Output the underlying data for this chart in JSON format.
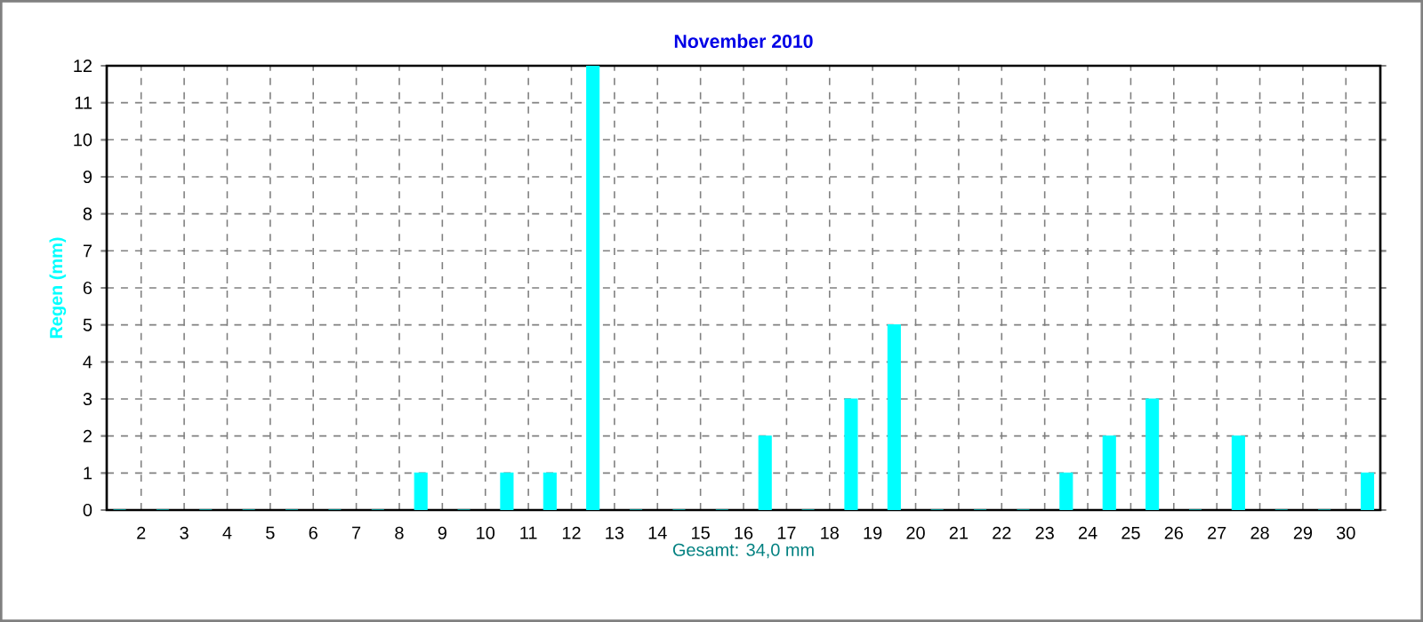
{
  "chart_data": {
    "type": "bar",
    "title": "November 2010",
    "xlabel": "Gesamt: 34,0 mm",
    "ylabel": "Regen  (mm)",
    "x": [
      1.5,
      2.5,
      3.5,
      4.5,
      5.5,
      6.5,
      7.5,
      8.5,
      9.5,
      10.5,
      11.5,
      12.5,
      13.5,
      14.5,
      15.5,
      16.5,
      17.5,
      18.5,
      19.5,
      20.5,
      21.5,
      22.5,
      23.5,
      24.5,
      25.5,
      26.5,
      27.5,
      28.5,
      29.5,
      30.5
    ],
    "values": [
      0,
      0,
      0,
      0,
      0,
      0,
      0,
      1,
      0,
      1,
      1,
      12,
      0,
      0,
      0,
      2,
      0,
      3,
      5,
      0,
      0,
      0,
      1,
      2,
      3,
      0,
      2,
      0,
      0,
      1
    ],
    "color": "#00ffff",
    "xlim": [
      1.2,
      30.8
    ],
    "xticks": [
      2,
      3,
      4,
      5,
      6,
      7,
      8,
      9,
      10,
      11,
      12,
      13,
      14,
      15,
      16,
      17,
      18,
      19,
      20,
      21,
      22,
      23,
      24,
      25,
      26,
      27,
      28,
      29,
      30
    ],
    "ylim": [
      0,
      12
    ],
    "yticks": [
      0,
      1,
      2,
      3,
      4,
      5,
      6,
      7,
      8,
      9,
      10,
      11,
      12
    ],
    "grid": true
  }
}
